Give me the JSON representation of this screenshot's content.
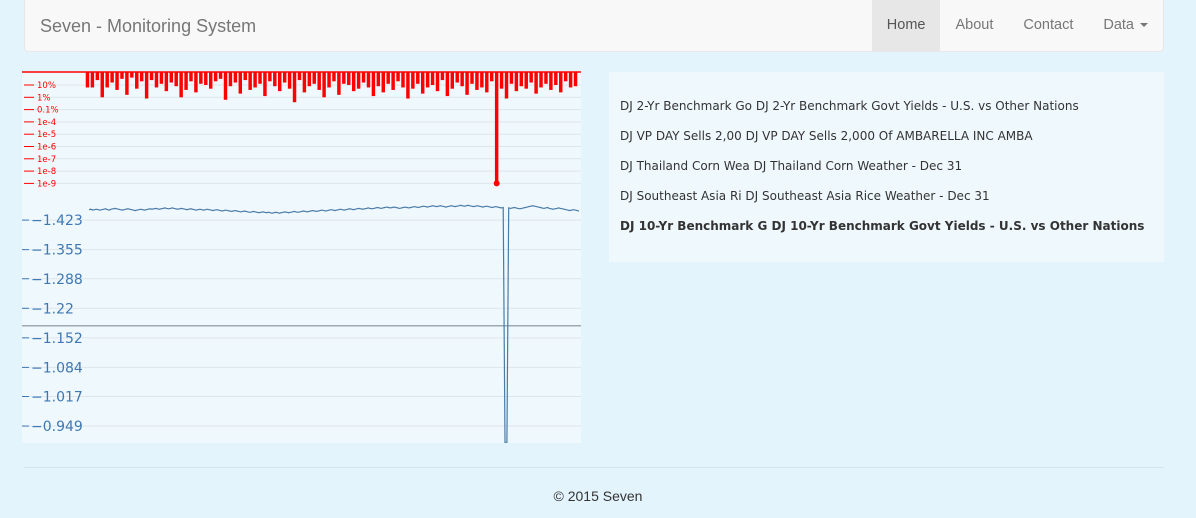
{
  "navbar": {
    "brand": "Seven - Monitoring System",
    "items": [
      {
        "label": "Home",
        "active": true
      },
      {
        "label": "About",
        "active": false
      },
      {
        "label": "Contact",
        "active": false
      },
      {
        "label": "Data",
        "active": false,
        "dropdown": true
      }
    ]
  },
  "news": {
    "items": [
      {
        "text": "DJ 2-Yr Benchmark Go DJ 2-Yr Benchmark Govt Yields - U.S. vs Other Nations",
        "bold": false
      },
      {
        "text": "DJ VP DAY Sells 2,00 DJ VP DAY Sells 2,000 Of AMBARELLA INC AMBA",
        "bold": false
      },
      {
        "text": "DJ Thailand Corn Wea DJ Thailand Corn Weather - Dec 31",
        "bold": false
      },
      {
        "text": "DJ Southeast Asia Ri DJ Southeast Asia Rice Weather - Dec 31",
        "bold": false
      },
      {
        "text": "DJ 10-Yr Benchmark G DJ 10-Yr Benchmark Govt Yields - U.S. vs Other Nations",
        "bold": true
      }
    ]
  },
  "footer": {
    "text": "© 2015 Seven"
  },
  "colors": {
    "significance": "#ff0000",
    "series": "#4a7ba6",
    "baseline": "#a0a8b0",
    "axis_text": "#3d78b4"
  },
  "chart_data": [
    {
      "type": "bar",
      "ylabel_ticks": [
        "10%",
        "1%",
        "0.1%",
        "1e-4",
        "1e-5",
        "1e-6",
        "1e-7",
        "1e-8",
        "1e-9"
      ],
      "highlight_tick_index": 8,
      "values_log10": [
        -1.2,
        -1.2,
        -0.6,
        -2,
        -1.2,
        -0.8,
        -1.4,
        -0.5,
        -1.8,
        -0.4,
        -1.3,
        -0.7,
        -2.1,
        -0.6,
        -1.2,
        -0.9,
        -1.5,
        -0.8,
        -1.1,
        -2,
        -1.4,
        -0.7,
        -1.6,
        -0.9,
        -1,
        -1.3,
        -0.7,
        -0.5,
        -2.2,
        -1.1,
        -0.8,
        -1.7,
        -0.6,
        -1.4,
        -1.2,
        -0.9,
        -1.9,
        -0.7,
        -1.1,
        -1.5,
        -0.8,
        -1.3,
        -2.4,
        -0.6,
        -1.6,
        -1.1,
        -0.9,
        -1.4,
        -2,
        -1.2,
        -0.7,
        -1.8,
        -0.9,
        -1,
        -1.5,
        -1.3,
        -0.8,
        -1.2,
        -1.9,
        -1.1,
        -1.6,
        -0.9,
        -1.4,
        -0.7,
        -1.2,
        -2.1,
        -1.3,
        -0.9,
        -1.7,
        -1.2,
        -1,
        -1.5,
        -0.6,
        -1.9,
        -1.3,
        -0.8,
        -1.1,
        -1.8,
        -0.9,
        -1.4,
        -1.2,
        -1.6,
        -0.7,
        -9,
        -1.3,
        -2.1,
        -0.9,
        -1.5,
        -1.1,
        -1.3,
        -0.8,
        -1.7,
        -1.2,
        -0.9,
        -1.4,
        -1,
        -1.6,
        -0.7,
        -1.2,
        -1.1
      ]
    },
    {
      "type": "line",
      "yticks": [
        -1.423,
        -1.355,
        -1.288,
        -1.22,
        -1.152,
        -1.084,
        -1.017,
        -0.949
      ],
      "ylim": [
        -1.49,
        -0.91
      ],
      "baseline_value": -1.18,
      "values": [
        -1.447,
        -1.448,
        -1.446,
        -1.447,
        -1.448,
        -1.447,
        -1.446,
        -1.447,
        -1.448,
        -1.449,
        -1.447,
        -1.446,
        -1.448,
        -1.449,
        -1.45,
        -1.449,
        -1.448,
        -1.447,
        -1.446,
        -1.447,
        -1.448,
        -1.449,
        -1.448,
        -1.447,
        -1.446,
        -1.445,
        -1.446,
        -1.447,
        -1.448,
        -1.447,
        -1.446,
        -1.447,
        -1.448,
        -1.449,
        -1.448,
        -1.449,
        -1.45,
        -1.449,
        -1.448,
        -1.449,
        -1.45,
        -1.451,
        -1.45,
        -1.449,
        -1.45,
        -1.451,
        -1.45,
        -1.449,
        -1.448,
        -1.449,
        -1.45,
        -1.449,
        -1.448,
        -1.447,
        -1.448,
        -1.449,
        -1.448,
        -1.447,
        -1.446,
        -1.447,
        -1.448,
        -1.447,
        -1.446,
        -1.447,
        -1.448,
        -1.447,
        -1.446,
        -1.445,
        -1.446,
        -1.447,
        -1.446,
        -1.445,
        -1.444,
        -1.445,
        -1.446,
        -1.445,
        -1.444,
        -1.443,
        -1.444,
        -1.445,
        -1.444,
        -1.443,
        -1.442,
        -1.443,
        -1.444,
        -1.443,
        -1.442,
        -1.441,
        -1.442,
        -1.443,
        -1.442,
        -1.441,
        -1.44,
        -1.441,
        -1.442,
        -1.441,
        -1.44,
        -1.441,
        -1.44,
        -1.439,
        -1.44,
        -1.441,
        -1.44,
        -1.439,
        -1.44,
        -1.441,
        -1.442,
        -1.441,
        -1.44,
        -1.441,
        -1.442,
        -1.443,
        -1.442,
        -1.441,
        -1.442,
        -1.443,
        -1.444,
        -1.443,
        -1.442,
        -1.443,
        -1.444,
        -1.445,
        -1.444,
        -1.443,
        -1.444,
        -1.445,
        -1.446,
        -1.445,
        -1.444,
        -1.445,
        -1.446,
        -1.447,
        -1.446,
        -1.445,
        -1.446,
        -1.447,
        -1.448,
        -1.447,
        -1.446,
        -1.447,
        -1.448,
        -1.449,
        -1.448,
        -1.447,
        -1.448,
        -1.449,
        -1.45,
        -1.449,
        -1.448,
        -1.449,
        -1.45,
        -1.451,
        -1.45,
        -1.449,
        -1.45,
        -1.451,
        -1.452,
        -1.451,
        -1.45,
        -1.451,
        -1.452,
        -1.453,
        -1.452,
        -1.451,
        -1.452,
        -1.453,
        -1.452,
        -1.451,
        -1.45,
        -1.451,
        -1.452,
        -1.453,
        -1.452,
        -1.451,
        -1.452,
        -1.453,
        -1.454,
        -1.453,
        -1.452,
        -1.453,
        -1.454,
        -1.455,
        -1.454,
        -1.453,
        -1.454,
        -1.455,
        -1.456,
        -1.455,
        -1.454,
        -1.455,
        -1.456,
        -1.455,
        -1.454,
        -1.453,
        -1.454,
        -1.455,
        -1.456,
        -1.455,
        -1.454,
        -1.455,
        -1.456,
        -1.457,
        -1.456,
        -1.455,
        -1.456,
        -1.457,
        -1.456,
        -1.455,
        -1.454,
        -1.455,
        -1.456,
        -1.455,
        -1.454,
        -1.453,
        -1.454,
        -1.455,
        -1.454,
        -1.453,
        -1.452,
        -1.453,
        -1.454,
        -1.453,
        -1.452,
        -1.451,
        -1.452,
        -1.453,
        -1.452,
        -1.451,
        -1.45,
        -1.451,
        -1.452,
        -1.451,
        -1.45,
        -1.449,
        -1.45,
        -1.451,
        -1.452,
        -1.453,
        -1.454,
        -1.455,
        -1.456,
        -1.455,
        -1.454,
        -1.453,
        -1.452,
        -1.451,
        -1.45,
        -1.451,
        -1.452,
        -1.45,
        -1.449,
        -1.448,
        -1.449,
        -1.45,
        -1.451,
        -1.45,
        -1.449,
        -1.448,
        -1.447,
        -1.446,
        -1.445,
        -1.446,
        -1.447,
        -1.446,
        -1.445,
        -1.444
      ]
    }
  ]
}
